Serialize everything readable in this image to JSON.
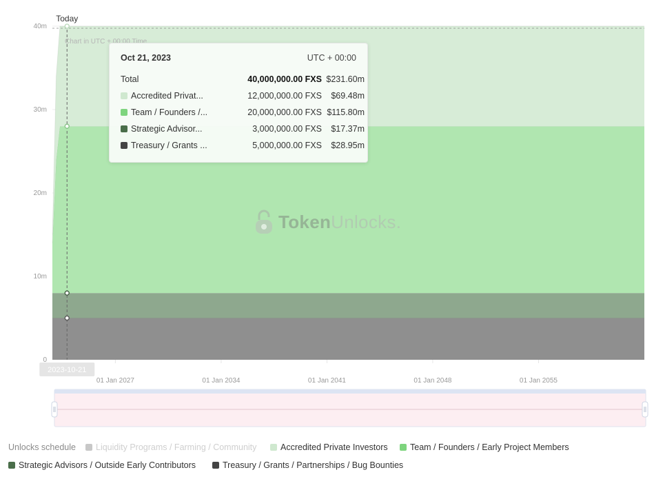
{
  "chart_data": {
    "type": "area",
    "stacked": true,
    "x_axis": {
      "ticks": [
        "01 Jan 2027",
        "01 Jan 2034",
        "01 Jan 2041",
        "01 Jan 2048",
        "01 Jan 2055"
      ],
      "range": [
        "2022-11-01",
        "2062-01-01"
      ]
    },
    "y_axis": {
      "ticks": [
        "0",
        "10m",
        "20m",
        "30m",
        "40m"
      ],
      "ylim": [
        0,
        40000000
      ]
    },
    "x": [
      "2022-11-01",
      "2023-02-01",
      "2023-05-01",
      "2023-10-21",
      "2062-01-01"
    ],
    "series": [
      {
        "name": "Treasury / Grants / Partnerships / Bug Bounties",
        "color": "#8f8f8f",
        "values": [
          5000000,
          5000000,
          5000000,
          5000000,
          5000000
        ]
      },
      {
        "name": "Strategic Advisors / Outside Early Contributors",
        "color": "#8ea88e",
        "values": [
          3000000,
          3000000,
          3000000,
          3000000,
          3000000
        ]
      },
      {
        "name": "Team / Founders / Early Project Members",
        "color": "#b0e6b0",
        "values": [
          6000000,
          16000000,
          20000000,
          20000000,
          20000000
        ]
      },
      {
        "name": "Accredited Private Investors",
        "color": "#d7ecd7",
        "values": [
          1000000,
          10000000,
          12000000,
          12000000,
          12000000
        ]
      }
    ],
    "today_label": "Today",
    "today_date": "2023-10-21",
    "today_badge": "2023-10-21",
    "timezone_note": "Chart in UTC + 00:00 Time",
    "legend_placement": "bottom",
    "grid": true
  },
  "tooltip": {
    "date": "Oct 21, 2023",
    "timezone": "UTC + 00:00",
    "rows": [
      {
        "label": "Total",
        "amount": "40,000,000.00 FXS",
        "usd": "$231.60m"
      },
      {
        "label": "Accredited Privat...",
        "amount": "12,000,000.00 FXS",
        "usd": "$69.48m",
        "color": "#cfe8cf"
      },
      {
        "label": "Team / Founders /...",
        "amount": "20,000,000.00 FXS",
        "usd": "$115.80m",
        "color": "#7ed47e"
      },
      {
        "label": "Strategic Advisor...",
        "amount": "3,000,000.00 FXS",
        "usd": "$17.37m",
        "color": "#4a6e4a"
      },
      {
        "label": "Treasury / Grants ...",
        "amount": "5,000,000.00 FXS",
        "usd": "$28.95m",
        "color": "#444444"
      }
    ]
  },
  "watermark": {
    "brand_a": "Token",
    "brand_b": "Unlocks",
    "dot": "."
  },
  "legend": {
    "title": "Unlocks schedule",
    "items": [
      {
        "label": "Liquidity Programs / Farming / Community",
        "color": "#c8c8c8",
        "disabled": true
      },
      {
        "label": "Accredited Private Investors",
        "color": "#cfe8cf"
      },
      {
        "label": "Team / Founders / Early Project Members",
        "color": "#7ed47e"
      },
      {
        "label": "Strategic Advisors / Outside Early Contributors",
        "color": "#4a6e4a"
      },
      {
        "label": "Treasury / Grants / Partnerships / Bug Bounties",
        "color": "#444444"
      }
    ]
  }
}
